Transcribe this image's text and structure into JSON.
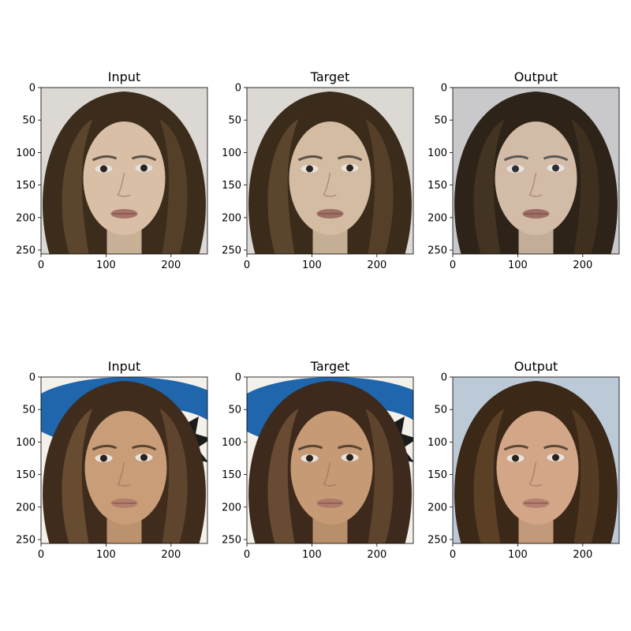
{
  "figure": {
    "rows": [
      {
        "panels": [
          {
            "title": "Input",
            "palette": "p1_input"
          },
          {
            "title": "Target",
            "palette": "p1_target"
          },
          {
            "title": "Output",
            "palette": "p1_output"
          }
        ]
      },
      {
        "panels": [
          {
            "title": "Input",
            "palette": "p2_input"
          },
          {
            "title": "Target",
            "palette": "p2_target"
          },
          {
            "title": "Output",
            "palette": "p2_output"
          }
        ]
      }
    ],
    "x_ticks": [
      "0",
      "100",
      "200"
    ],
    "x_tick_values": [
      0,
      100,
      200
    ],
    "y_ticks": [
      "0",
      "50",
      "100",
      "150",
      "200",
      "250"
    ],
    "y_tick_values": [
      0,
      50,
      100,
      150,
      200,
      250
    ],
    "image_extent": [
      256,
      256
    ]
  },
  "palettes": {
    "p1_input": {
      "bg": "#dcd9d4",
      "hair": "#3b2c1c",
      "hair_light": "#6a5033",
      "skin": "#d8bfa5",
      "lips": "#a5736a",
      "eyes": "#2a2420"
    },
    "p1_target": {
      "bg": "#dcd9d4",
      "hair": "#3a2b1b",
      "hair_light": "#6b5135",
      "skin": "#d4bca2",
      "lips": "#a06f65",
      "eyes": "#2a2420"
    },
    "p1_output": {
      "bg": "#c9c9cc",
      "hair": "#2e2318",
      "hair_light": "#4c3a27",
      "skin": "#d3bca7",
      "lips": "#9d6e66",
      "eyes": "#2b2f33"
    },
    "p2_input": {
      "bg": "#f4f0ea",
      "accent": "#1f66ad",
      "hair": "#3f2c1d",
      "hair_light": "#7a5a3c",
      "skin": "#c99d77",
      "lips": "#b47e6e",
      "eyes": "#2a211a"
    },
    "p2_target": {
      "bg": "#f4f0ea",
      "accent": "#1f66ad",
      "hair": "#3d2a1c",
      "hair_light": "#7a5a3c",
      "skin": "#c59a74",
      "lips": "#b07a6a",
      "eyes": "#2a211a"
    },
    "p2_output": {
      "bg": "#bcc9d6",
      "hair": "#3b2817",
      "hair_light": "#6a4a2e",
      "skin": "#d2a686",
      "lips": "#b77f72",
      "eyes": "#2b221a"
    }
  }
}
